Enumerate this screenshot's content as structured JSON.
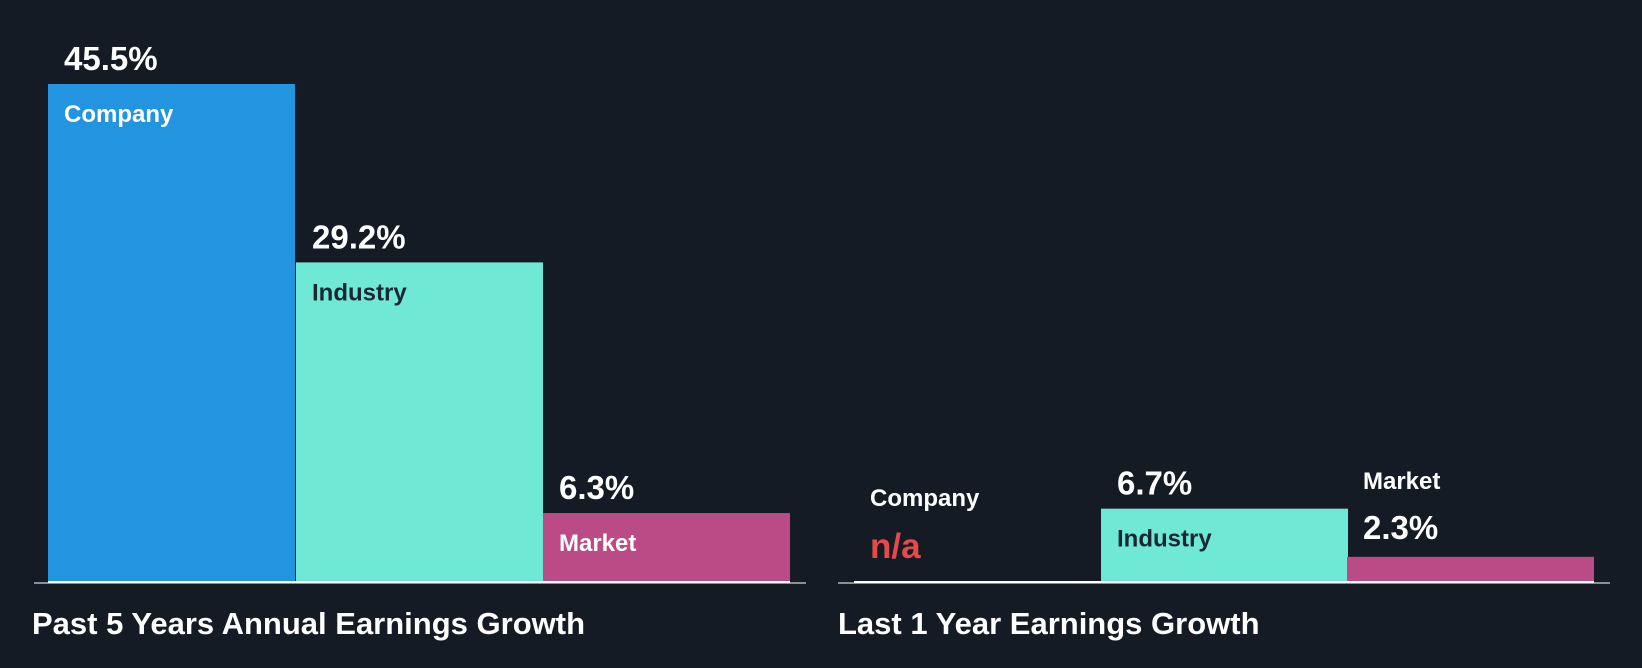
{
  "chart_data": [
    {
      "type": "bar",
      "title": "Past 5 Years Annual Earnings Growth",
      "categories": [
        "Company",
        "Industry",
        "Market"
      ],
      "values": [
        45.5,
        29.2,
        6.3
      ],
      "value_labels": [
        "45.5%",
        "29.2%",
        "6.3%"
      ],
      "unit": "%",
      "ylim": [
        0,
        45.5
      ]
    },
    {
      "type": "bar",
      "title": "Last 1 Year Earnings Growth",
      "categories": [
        "Company",
        "Industry",
        "Market"
      ],
      "values": [
        null,
        6.7,
        2.3
      ],
      "value_labels": [
        "n/a",
        "6.7%",
        "2.3%"
      ],
      "unit": "%",
      "ylim": [
        0,
        45.5
      ]
    }
  ],
  "colors": {
    "background": "#151b24",
    "company": "#2394df",
    "industry": "#6fe9d6",
    "market": "#bb4b87",
    "na": "#e44a49",
    "baseline": "#8a8f96",
    "text_light": "#ffffff",
    "text_dark": "#1a2733"
  }
}
